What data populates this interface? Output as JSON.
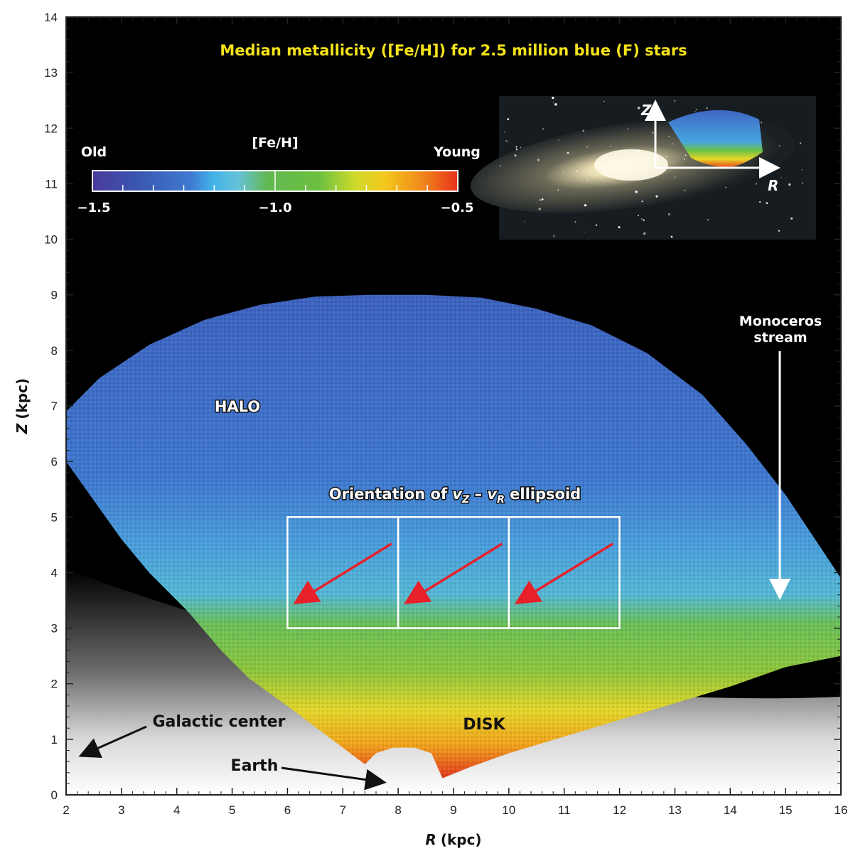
{
  "chart_data": {
    "type": "heatmap",
    "title": "Median metallicity ([Fe/H]) for 2.5 million blue (F) stars",
    "xlabel_var": "R",
    "xlabel_unit": "(kpc)",
    "ylabel_var": "Z",
    "ylabel_unit": "(kpc)",
    "xlim": [
      2,
      16
    ],
    "ylim": [
      0,
      14
    ],
    "x_ticks": [
      2,
      3,
      4,
      5,
      6,
      7,
      8,
      9,
      10,
      11,
      12,
      13,
      14,
      15,
      16
    ],
    "y_ticks": [
      0,
      1,
      2,
      3,
      4,
      5,
      6,
      7,
      8,
      9,
      10,
      11,
      12,
      13,
      14
    ],
    "grid": false,
    "colorbar": {
      "quantity": "[Fe/H]",
      "min": -1.5,
      "max": -0.5,
      "tick_labels": [
        "−1.5",
        "−1.0",
        "−0.5"
      ],
      "left_label": "Old",
      "right_label": "Young",
      "colors": [
        "#4a3a9a",
        "#3a56b0",
        "#3f7ad0",
        "#42b2e8",
        "#66c2d8",
        "#62b850",
        "#6cc040",
        "#d0da2c",
        "#f4c81c",
        "#f08a1c",
        "#e8301c"
      ]
    },
    "metallicity_profile": [
      {
        "z": 0.3,
        "feh": -0.52
      },
      {
        "z": 1.0,
        "feh": -0.65
      },
      {
        "z": 1.5,
        "feh": -0.78
      },
      {
        "z": 2.0,
        "feh": -0.92
      },
      {
        "z": 2.7,
        "feh": -1.05
      },
      {
        "z": 3.5,
        "feh": -1.18
      },
      {
        "z": 4.5,
        "feh": -1.28
      },
      {
        "z": 6.0,
        "feh": -1.35
      },
      {
        "z": 9.0,
        "feh": -1.4
      }
    ],
    "annotations": {
      "halo": "HALO",
      "disk": "DISK",
      "ellipsoid_prefix": "Orientation of ",
      "ellipsoid_vz_v": "v",
      "ellipsoid_vz_sub": "Z",
      "ellipsoid_dash": " – ",
      "ellipsoid_vr_v": "v",
      "ellipsoid_vr_sub": "R",
      "ellipsoid_suffix": " ellipsoid",
      "monoceros_line1": "Monoceros",
      "monoceros_line2": "stream",
      "galactic_center": "Galactic center",
      "earth": "Earth"
    },
    "ellipsoid_boxes": [
      {
        "r_min": 6,
        "r_max": 8,
        "z_min": 3,
        "z_max": 5
      },
      {
        "r_min": 8,
        "r_max": 10,
        "z_min": 3,
        "z_max": 5
      },
      {
        "r_min": 10,
        "r_max": 12,
        "z_min": 3,
        "z_max": 5
      }
    ],
    "inset": {
      "axis_z": "Z",
      "axis_r": "R"
    },
    "colors": {
      "background": "#000000",
      "title": "#f4e21a",
      "arrow": "#e8202a",
      "box": "#ffffff"
    }
  }
}
